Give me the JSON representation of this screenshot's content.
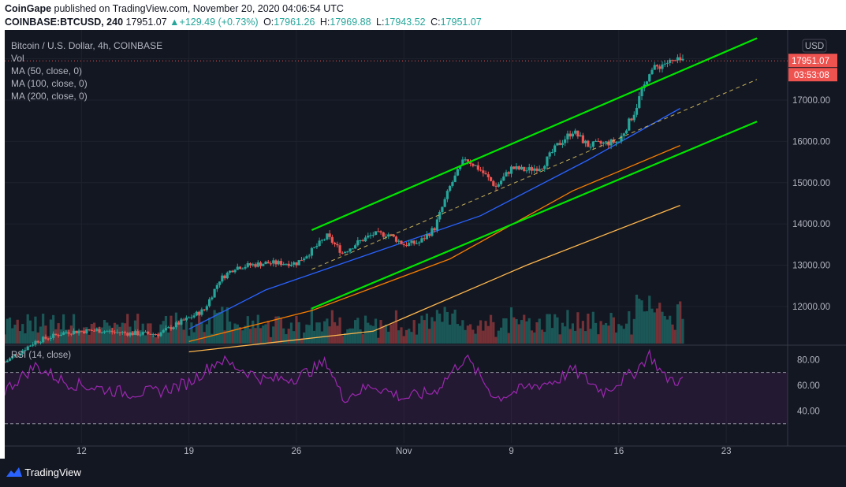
{
  "header": {
    "publisher": "CoinGape",
    "published_text": "published on TradingView.com, November 20, 2020 04:06:54 UTC",
    "symbol": "COINBASE:BTCUSD, 240",
    "last": "17951.07",
    "change": "+129.49 (+0.73%)",
    "open_label": "O:",
    "open": "17961.26",
    "high_label": "H:",
    "high": "17969.88",
    "low_label": "L:",
    "low": "17943.52",
    "close_label": "C:",
    "close": "17951.07"
  },
  "legend": {
    "title": "Bitcoin / U.S. Dollar, 4h, COINBASE",
    "items": [
      "Vol",
      "MA (50, close, 0)",
      "MA (100, close, 0)",
      "MA (200, close, 0)"
    ]
  },
  "price_axis": {
    "currency": "USD",
    "ticks": [
      "12000.00",
      "13000.00",
      "14000.00",
      "15000.00",
      "16000.00",
      "17000.00"
    ],
    "last_price": "17951.07",
    "countdown": "03:53:08"
  },
  "rsi": {
    "label": "RSI (14, close)",
    "ticks": [
      "40.00",
      "60.00",
      "80.00"
    ],
    "upper": 70,
    "lower": 30
  },
  "time_axis": {
    "ticks": [
      "12",
      "19",
      "26",
      "Nov",
      "9",
      "16",
      "23"
    ]
  },
  "footer": {
    "brand": "TradingView"
  },
  "colors": {
    "up": "#26a69a",
    "down": "#ef5350",
    "ma50": "#2962ff",
    "ma100": "#f57c00",
    "ma200": "#ffb74d",
    "channel": "#00e600",
    "rsi": "#9c27b0",
    "background": "#131722"
  },
  "chart_data": {
    "type": "candlestick",
    "interval": "4h",
    "x_range": [
      "2020-10-07",
      "2020-11-27"
    ],
    "y_range": [
      11100,
      18700
    ],
    "close_path": [
      [
        "2020-10-07",
        10650
      ],
      [
        "2020-10-09",
        11150
      ],
      [
        "2020-10-11",
        11380
      ],
      [
        "2020-10-13",
        11420
      ],
      [
        "2020-10-15",
        11350
      ],
      [
        "2020-10-17",
        11330
      ],
      [
        "2020-10-19",
        11720
      ],
      [
        "2020-10-20",
        11920
      ],
      [
        "2020-10-21",
        12650
      ],
      [
        "2020-10-22",
        12950
      ],
      [
        "2020-10-24",
        13050
      ],
      [
        "2020-10-26",
        13050
      ],
      [
        "2020-10-27",
        13350
      ],
      [
        "2020-10-28",
        13700
      ],
      [
        "2020-10-29",
        13300
      ],
      [
        "2020-10-30",
        13550
      ],
      [
        "2020-10-31",
        13750
      ],
      [
        "2020-11-01",
        13750
      ],
      [
        "2020-11-02",
        13500
      ],
      [
        "2020-11-03",
        13550
      ],
      [
        "2020-11-04",
        13900
      ],
      [
        "2020-11-05",
        14900
      ],
      [
        "2020-11-06",
        15600
      ],
      [
        "2020-11-07",
        15300
      ],
      [
        "2020-11-08",
        14900
      ],
      [
        "2020-11-09",
        15350
      ],
      [
        "2020-11-10",
        15300
      ],
      [
        "2020-11-11",
        15400
      ],
      [
        "2020-11-12",
        15900
      ],
      [
        "2020-11-13",
        16250
      ],
      [
        "2020-11-14",
        15900
      ],
      [
        "2020-11-15",
        15950
      ],
      [
        "2020-11-16",
        16000
      ],
      [
        "2020-11-17",
        16700
      ],
      [
        "2020-11-18",
        17700
      ],
      [
        "2020-11-19",
        17900
      ],
      [
        "2020-11-20",
        17951
      ]
    ],
    "ma50": [
      [
        "2020-10-19",
        11450
      ],
      [
        "2020-10-24",
        12400
      ],
      [
        "2020-10-31",
        13300
      ],
      [
        "2020-11-07",
        14200
      ],
      [
        "2020-11-14",
        15550
      ],
      [
        "2020-11-20",
        16800
      ]
    ],
    "ma100": [
      [
        "2020-10-19",
        11150
      ],
      [
        "2020-10-27",
        11900
      ],
      [
        "2020-11-05",
        13150
      ],
      [
        "2020-11-13",
        14800
      ],
      [
        "2020-11-20",
        15900
      ]
    ],
    "ma200": [
      [
        "2020-10-19",
        10900
      ],
      [
        "2020-10-31",
        11400
      ],
      [
        "2020-11-10",
        13000
      ],
      [
        "2020-11-20",
        14450
      ]
    ],
    "channel": {
      "upper": [
        [
          "2020-10-27",
          13850
        ],
        [
          "2020-11-25",
          18500
        ]
      ],
      "lower": [
        [
          "2020-10-27",
          11950
        ],
        [
          "2020-11-25",
          16480
        ]
      ],
      "mid": [
        [
          "2020-10-27",
          12900
        ],
        [
          "2020-11-25",
          17500
        ]
      ]
    },
    "rsi_path": [
      [
        "2020-10-07",
        56
      ],
      [
        "2020-10-09",
        75
      ],
      [
        "2020-10-11",
        62
      ],
      [
        "2020-10-13",
        58
      ],
      [
        "2020-10-15",
        54
      ],
      [
        "2020-10-17",
        55
      ],
      [
        "2020-10-19",
        62
      ],
      [
        "2020-10-21",
        80
      ],
      [
        "2020-10-24",
        64
      ],
      [
        "2020-10-26",
        66
      ],
      [
        "2020-10-28",
        78
      ],
      [
        "2020-10-29",
        50
      ],
      [
        "2020-10-31",
        60
      ],
      [
        "2020-11-02",
        50
      ],
      [
        "2020-11-04",
        55
      ],
      [
        "2020-11-06",
        82
      ],
      [
        "2020-11-08",
        50
      ],
      [
        "2020-11-10",
        58
      ],
      [
        "2020-11-12",
        64
      ],
      [
        "2020-11-13",
        72
      ],
      [
        "2020-11-15",
        55
      ],
      [
        "2020-11-17",
        70
      ],
      [
        "2020-11-18",
        84
      ],
      [
        "2020-11-19",
        66
      ],
      [
        "2020-11-20",
        63
      ]
    ]
  }
}
